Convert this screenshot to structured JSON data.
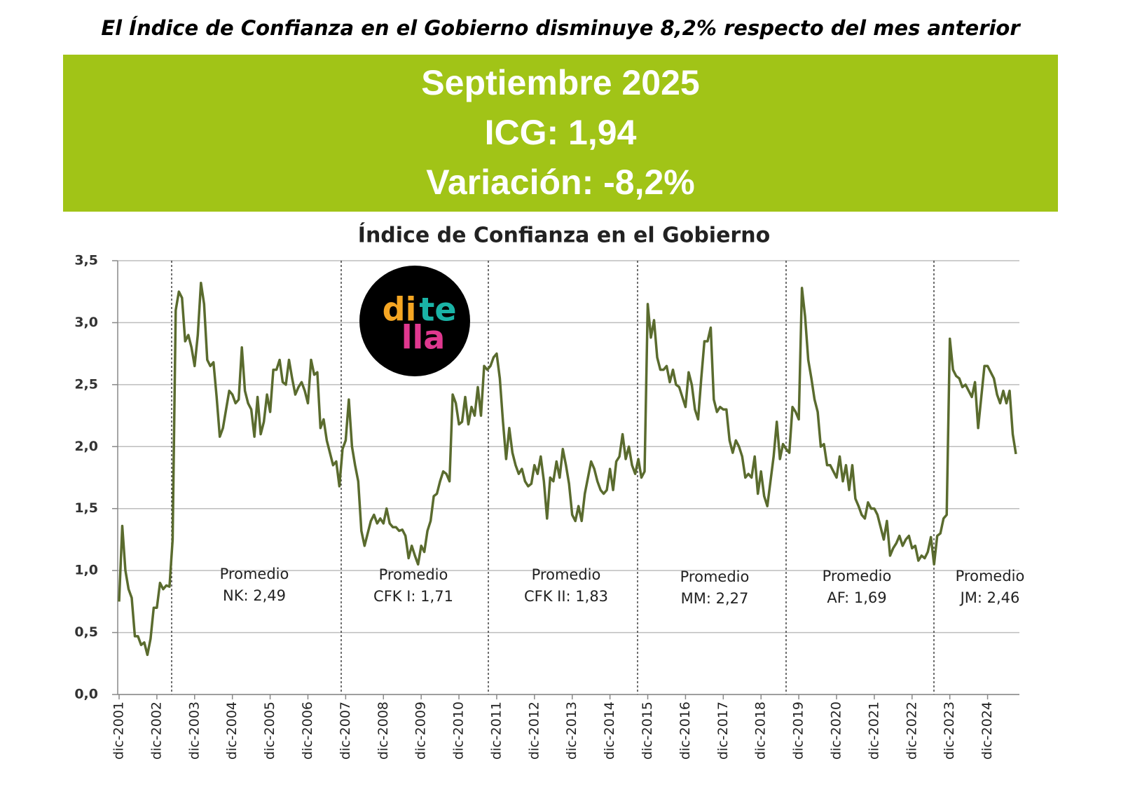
{
  "header": {
    "title": "El Índice de Confianza en el Gobierno disminuye 8,2% respecto del mes anterior",
    "box_lines": [
      "Septiembre 2025",
      "ICG: 1,94",
      "Variación: -8,2%"
    ]
  },
  "logo": [
    "di",
    "te",
    "lla"
  ],
  "chart_data": {
    "type": "line",
    "title": "Índice de Confianza en el Gobierno",
    "color": "#5a6b2e",
    "grid": true,
    "categories": [
      "dic-2001",
      null,
      null,
      null,
      null,
      null,
      null,
      null,
      null,
      null,
      null,
      null,
      "dic-2002",
      null,
      null,
      null,
      null,
      null,
      null,
      null,
      null,
      null,
      null,
      null,
      "dic-2003",
      null,
      null,
      null,
      null,
      null,
      null,
      null,
      null,
      null,
      null,
      null,
      "dic-2004",
      null,
      null,
      null,
      null,
      null,
      null,
      null,
      null,
      null,
      null,
      null,
      "dic-2005",
      null,
      null,
      null,
      null,
      null,
      null,
      null,
      null,
      null,
      null,
      null,
      "dic-2006",
      null,
      null,
      null,
      null,
      null,
      null,
      null,
      null,
      null,
      null,
      null,
      "dic-2007",
      null,
      null,
      null,
      null,
      null,
      null,
      null,
      null,
      null,
      null,
      null,
      "dic-2008",
      null,
      null,
      null,
      null,
      null,
      null,
      null,
      null,
      null,
      null,
      null,
      "dic-2009",
      null,
      null,
      null,
      null,
      null,
      null,
      null,
      null,
      null,
      null,
      null,
      "dic-2010",
      null,
      null,
      null,
      null,
      null,
      null,
      null,
      null,
      null,
      null,
      null,
      "dic-2011",
      null,
      null,
      null,
      null,
      null,
      null,
      null,
      null,
      null,
      null,
      null,
      "dic-2012",
      null,
      null,
      null,
      null,
      null,
      null,
      null,
      null,
      null,
      null,
      null,
      "dic-2013",
      null,
      null,
      null,
      null,
      null,
      null,
      null,
      null,
      null,
      null,
      null,
      "dic-2014",
      null,
      null,
      null,
      null,
      null,
      null,
      null,
      null,
      null,
      null,
      null,
      "dic-2015",
      null,
      null,
      null,
      null,
      null,
      null,
      null,
      null,
      null,
      null,
      null,
      "dic-2016",
      null,
      null,
      null,
      null,
      null,
      null,
      null,
      null,
      null,
      null,
      null,
      "dic-2017",
      null,
      null,
      null,
      null,
      null,
      null,
      null,
      null,
      null,
      null,
      null,
      "dic-2018",
      null,
      null,
      null,
      null,
      null,
      null,
      null,
      null,
      null,
      null,
      null,
      "dic-2019",
      null,
      null,
      null,
      null,
      null,
      null,
      null,
      null,
      null,
      null,
      null,
      "dic-2020",
      null,
      null,
      null,
      null,
      null,
      null,
      null,
      null,
      null,
      null,
      null,
      "dic-2021",
      null,
      null,
      null,
      null,
      null,
      null,
      null,
      null,
      null,
      null,
      null,
      "dic-2022",
      null,
      null,
      null,
      null,
      null,
      null,
      null,
      null,
      null,
      null,
      null,
      "dic-2023",
      null,
      null,
      null,
      null,
      null,
      null,
      null,
      null,
      null,
      null,
      null,
      "dic-2024",
      null,
      null,
      null,
      null,
      null,
      null,
      null,
      null,
      null
    ],
    "values": [
      0.75,
      1.36,
      1.0,
      0.85,
      0.78,
      0.47,
      0.47,
      0.4,
      0.42,
      0.32,
      0.45,
      0.7,
      0.7,
      0.9,
      0.85,
      0.88,
      0.87,
      1.25,
      3.1,
      3.25,
      3.2,
      2.85,
      2.9,
      2.8,
      2.65,
      2.9,
      3.32,
      3.15,
      2.7,
      2.65,
      2.68,
      2.4,
      2.08,
      2.15,
      2.3,
      2.45,
      2.42,
      2.35,
      2.38,
      2.8,
      2.45,
      2.35,
      2.3,
      2.08,
      2.4,
      2.1,
      2.2,
      2.42,
      2.28,
      2.62,
      2.62,
      2.7,
      2.52,
      2.5,
      2.7,
      2.55,
      2.42,
      2.48,
      2.52,
      2.45,
      2.35,
      2.7,
      2.58,
      2.6,
      2.15,
      2.22,
      2.05,
      1.95,
      1.85,
      1.88,
      1.68,
      1.98,
      2.05,
      2.38,
      2.0,
      1.85,
      1.72,
      1.32,
      1.2,
      1.3,
      1.4,
      1.45,
      1.38,
      1.42,
      1.38,
      1.5,
      1.38,
      1.35,
      1.35,
      1.32,
      1.33,
      1.28,
      1.1,
      1.2,
      1.12,
      1.05,
      1.2,
      1.15,
      1.32,
      1.4,
      1.6,
      1.62,
      1.72,
      1.8,
      1.78,
      1.72,
      2.42,
      2.35,
      2.18,
      2.2,
      2.4,
      2.18,
      2.32,
      2.25,
      2.48,
      2.25,
      2.65,
      2.62,
      2.65,
      2.72,
      2.75,
      2.55,
      2.2,
      1.9,
      2.15,
      1.95,
      1.85,
      1.78,
      1.82,
      1.72,
      1.68,
      1.7,
      1.85,
      1.78,
      1.92,
      1.72,
      1.42,
      1.75,
      1.72,
      1.88,
      1.75,
      1.98,
      1.85,
      1.7,
      1.45,
      1.4,
      1.52,
      1.4,
      1.62,
      1.75,
      1.88,
      1.82,
      1.72,
      1.65,
      1.62,
      1.65,
      1.82,
      1.65,
      1.88,
      1.92,
      2.1,
      1.9,
      2.0,
      1.85,
      1.78,
      1.9,
      1.75,
      1.8,
      3.15,
      2.88,
      3.02,
      2.72,
      2.62,
      2.62,
      2.65,
      2.52,
      2.62,
      2.5,
      2.48,
      2.4,
      2.32,
      2.6,
      2.5,
      2.3,
      2.22,
      2.55,
      2.85,
      2.85,
      2.96,
      2.38,
      2.28,
      2.32,
      2.3,
      2.3,
      2.05,
      1.95,
      2.05,
      2.0,
      1.92,
      1.75,
      1.78,
      1.75,
      1.92,
      1.62,
      1.8,
      1.6,
      1.52,
      1.72,
      1.92,
      2.2,
      1.9,
      2.02,
      1.98,
      1.95,
      2.32,
      2.28,
      2.22,
      3.28,
      3.05,
      2.7,
      2.55,
      2.38,
      2.28,
      2.0,
      2.02,
      1.85,
      1.85,
      1.8,
      1.75,
      1.92,
      1.72,
      1.85,
      1.65,
      1.85,
      1.58,
      1.52,
      1.45,
      1.42,
      1.55,
      1.5,
      1.5,
      1.45,
      1.35,
      1.25,
      1.4,
      1.12,
      1.18,
      1.22,
      1.28,
      1.2,
      1.25,
      1.28,
      1.18,
      1.2,
      1.08,
      1.12,
      1.1,
      1.15,
      1.27,
      1.05,
      1.28,
      1.3,
      1.42,
      1.45,
      2.87,
      2.62,
      2.57,
      2.55,
      2.48,
      2.5,
      2.45,
      2.4,
      2.52,
      2.15,
      2.4,
      2.65,
      2.65,
      2.6,
      2.55,
      2.42,
      2.35,
      2.45,
      2.35,
      2.45,
      2.1,
      1.94
    ],
    "ylim": [
      0,
      3.5
    ],
    "yticks": [
      {
        "value": 0,
        "label": "0,0"
      },
      {
        "value": 0.5,
        "label": "0,5"
      },
      {
        "value": 1,
        "label": "1,0"
      },
      {
        "value": 1.5,
        "label": "1,5"
      },
      {
        "value": 2,
        "label": "2,0"
      },
      {
        "value": 2.5,
        "label": "2,5"
      },
      {
        "value": 3,
        "label": "3,0"
      },
      {
        "value": 3.5,
        "label": "3,5"
      }
    ],
    "annotations": [
      [
        "Promedio",
        "NK: 2,49"
      ],
      [
        "Promedio",
        "CFK I: 1,71"
      ],
      [
        "Promedio",
        "CFK II: 1,83"
      ],
      [
        "Promedio",
        "MM: 2,27"
      ],
      [
        "Promedio",
        "AF: 1,69"
      ],
      [
        "Promedio",
        "JM: 2,46"
      ]
    ]
  }
}
